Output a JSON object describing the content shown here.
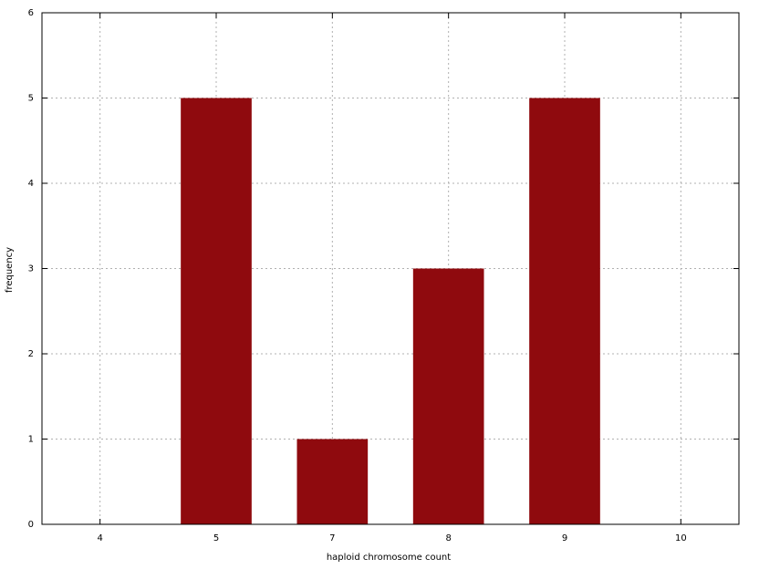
{
  "chart_data": {
    "type": "bar",
    "xlabel": "haploid chromosome count",
    "ylabel": "frequency",
    "categories": [
      "4",
      "5",
      "7",
      "8",
      "9",
      "10"
    ],
    "values": [
      0,
      5,
      1,
      3,
      5,
      0
    ],
    "color": "#8f0a0e",
    "ylim": [
      0,
      6
    ],
    "yticks": [
      0,
      1,
      2,
      3,
      4,
      5,
      6
    ],
    "grid": true
  }
}
